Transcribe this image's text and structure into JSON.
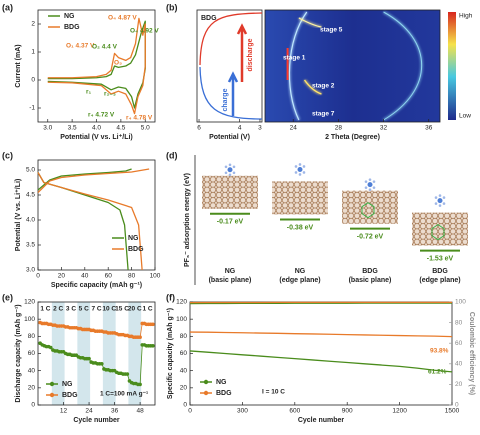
{
  "chart_data": [
    {
      "type": "line",
      "label": "(a)",
      "xlabel": "Potential (V vs. Li⁺/Li)",
      "ylabel": "Current (mA)",
      "xlim": [
        2.8,
        5.2
      ],
      "xticks": [
        {
          "value": 3.0,
          "label": "3.0"
        },
        {
          "value": 3.5,
          "label": "3.5"
        },
        {
          "value": 4.0,
          "label": "4.0"
        },
        {
          "value": 4.5,
          "label": "4.5"
        },
        {
          "value": 5.0,
          "label": "5.0"
        }
      ],
      "ylim": [
        -1.5,
        2.5
      ],
      "yticks": [
        -1,
        0,
        1,
        2
      ],
      "series": [
        {
          "name": "NG",
          "color": "#4a8c1c",
          "x": [
            3.0,
            3.5,
            4.0,
            4.2,
            4.3,
            4.37,
            4.45,
            4.6,
            4.7,
            4.8,
            4.92,
            5.0,
            5.0,
            4.95,
            4.85,
            4.78,
            4.72,
            4.6,
            4.45,
            4.3,
            4.1,
            3.5,
            3.0
          ],
          "values": [
            0.05,
            0.05,
            0.08,
            0.12,
            0.2,
            0.5,
            0.45,
            0.5,
            0.6,
            0.9,
            1.7,
            2.1,
            0.4,
            -0.1,
            -0.5,
            -1.0,
            -0.6,
            -0.3,
            -0.25,
            -0.35,
            -0.15,
            -0.08,
            -0.05
          ]
        },
        {
          "name": "BDG",
          "color": "#e87a2a",
          "x": [
            3.0,
            3.5,
            4.0,
            4.2,
            4.3,
            4.37,
            4.45,
            4.6,
            4.7,
            4.8,
            4.87,
            4.95,
            5.0,
            5.0,
            4.95,
            4.85,
            4.78,
            4.72,
            4.6,
            4.45,
            4.3,
            4.1,
            3.5,
            3.0
          ],
          "values": [
            0.08,
            0.08,
            0.12,
            0.2,
            0.35,
            0.95,
            0.8,
            0.7,
            0.8,
            1.3,
            2.2,
            1.6,
            2.0,
            0.5,
            -0.2,
            -0.6,
            -1.2,
            -0.9,
            -0.5,
            -0.4,
            -0.5,
            -0.2,
            -0.1,
            -0.08
          ]
        }
      ],
      "annotations": [
        "O₄ 4.87 V",
        "O₁ 4.37 V",
        "O₂ 4.4 V",
        "O₄ 4.92 V",
        "O₃",
        "r₁",
        "r₂₋₃",
        "r₄ 4.72 V",
        "r₄ 4.78 V"
      ]
    },
    {
      "type": "heatmap",
      "label": "(b)",
      "sample": "BDG",
      "discharge": "discharge",
      "charge": "charge",
      "vlabel": "Potential (V)",
      "vlim": [
        6.1,
        2.9
      ],
      "vticks": [
        6,
        4,
        3
      ],
      "xlabel": "2 Theta (Degree)",
      "xlim": [
        21.5,
        37
      ],
      "xticks": [
        24,
        28,
        32,
        36
      ],
      "annotations": [
        "stage 5",
        "stage 1",
        "stage 2",
        "stage 7"
      ],
      "high": "High",
      "low": "Low"
    },
    {
      "type": "line",
      "label": "(c)",
      "xlabel": "Specific capacity (mAh g⁻¹)",
      "ylabel": "Potential (V vs. Li⁺/Li)",
      "xlim": [
        0,
        100
      ],
      "xticks": [
        0,
        20,
        40,
        60,
        80,
        100
      ],
      "ylim": [
        3.0,
        5.2
      ],
      "yticks": [
        {
          "value": 3.0,
          "label": "3.0"
        },
        {
          "value": 3.5,
          "label": "3.5"
        },
        {
          "value": 4.0,
          "label": "4.0"
        },
        {
          "value": 4.5,
          "label": "4.5"
        },
        {
          "value": 5.0,
          "label": "5.0"
        }
      ],
      "series": [
        {
          "name": "NG",
          "color": "#4a8c1c",
          "x": [
            0,
            10,
            20,
            40,
            60,
            75,
            80,
            null,
            0,
            5,
            20,
            40,
            60,
            70,
            74,
            76,
            77
          ],
          "values": [
            4.6,
            4.8,
            4.88,
            4.92,
            4.95,
            4.98,
            5.02,
            null,
            4.95,
            4.75,
            4.65,
            4.5,
            4.35,
            4.2,
            3.9,
            3.3,
            3.0
          ]
        },
        {
          "name": "BDG",
          "color": "#e87a2a",
          "x": [
            0,
            10,
            20,
            40,
            60,
            80,
            95,
            null,
            0,
            5,
            20,
            40,
            60,
            80,
            86,
            88,
            89
          ],
          "values": [
            4.55,
            4.78,
            4.85,
            4.9,
            4.93,
            4.96,
            5.02,
            null,
            4.95,
            4.75,
            4.65,
            4.52,
            4.4,
            4.25,
            3.9,
            3.3,
            3.0
          ]
        }
      ]
    },
    {
      "type": "bar",
      "label": "(d)",
      "ylabel": "PF₆⁻ adsorption energy (eV)",
      "ylim": [
        -2.8,
        2.0
      ],
      "categories": [
        [
          "NG",
          "(basic plane)"
        ],
        [
          "NG",
          "(edge plane)"
        ],
        [
          "BDG",
          "(basic plane)"
        ],
        [
          "BDG",
          "(edge plane)"
        ]
      ],
      "values": [
        -0.17,
        -0.38,
        -0.72,
        -1.53
      ],
      "value_labels": [
        "-0.17 eV",
        "-0.38 eV",
        "-0.72 eV",
        "-1.53 eV"
      ],
      "color": "#4a8c1c"
    },
    {
      "type": "scatter",
      "label": "(e)",
      "xlabel": "Cycle number",
      "ylabel": "Discharge capacity (mAh g⁻¹)",
      "xlim": [
        0,
        55
      ],
      "xticks": [
        12,
        24,
        36,
        48
      ],
      "ylim": [
        0,
        120
      ],
      "yticks": [
        0,
        20,
        40,
        60,
        80,
        100,
        120
      ],
      "rates": [
        "1 C",
        "2 C",
        "3 C",
        "5 C",
        "7 C",
        "10 C",
        "15 C",
        "20 C",
        "1 C"
      ],
      "note": "1 C=100 mA g⁻¹",
      "x": [
        1,
        2,
        3,
        4,
        5,
        6,
        7,
        8,
        9,
        10,
        11,
        12,
        13,
        14,
        15,
        16,
        17,
        18,
        19,
        20,
        21,
        22,
        23,
        24,
        25,
        26,
        27,
        28,
        29,
        30,
        31,
        32,
        33,
        34,
        35,
        36,
        37,
        38,
        39,
        40,
        41,
        42,
        43,
        44,
        45,
        46,
        47,
        48,
        49,
        50,
        51,
        52,
        53,
        54
      ],
      "series": [
        {
          "name": "NG",
          "color": "#4a8c1c",
          "values": [
            72,
            70,
            69,
            68,
            68,
            67,
            64,
            63,
            63,
            62,
            62,
            62,
            60,
            59,
            59,
            58,
            58,
            58,
            56,
            55,
            55,
            54,
            54,
            54,
            50,
            49,
            49,
            48,
            48,
            48,
            42,
            41,
            41,
            40,
            40,
            40,
            38,
            37,
            37,
            36,
            36,
            36,
            28,
            26,
            25,
            25,
            24,
            24,
            70,
            70,
            69,
            69,
            69,
            69
          ]
        },
        {
          "name": "BDG",
          "color": "#e87a2a",
          "values": [
            96,
            95,
            95,
            95,
            94,
            94,
            93,
            93,
            92,
            92,
            92,
            92,
            91,
            91,
            90,
            90,
            90,
            90,
            89,
            89,
            88,
            88,
            88,
            88,
            87,
            87,
            86,
            86,
            86,
            86,
            85,
            85,
            84,
            84,
            84,
            84,
            83,
            82,
            82,
            82,
            81,
            81,
            80,
            80,
            79,
            79,
            79,
            79,
            95,
            95,
            94,
            94,
            94,
            94
          ]
        }
      ]
    },
    {
      "type": "line",
      "label": "(f)",
      "xlabel": "Cycle number",
      "ylabel": "Specific capacity (mAh g⁻¹)",
      "y2label": "Coulombic efficiency (%)",
      "xlim": [
        0,
        1500
      ],
      "xticks": [
        0,
        300,
        600,
        900,
        1200,
        1500
      ],
      "ylim": [
        0,
        120
      ],
      "yticks": [
        0,
        20,
        40,
        60,
        80,
        100,
        120
      ],
      "y2lim": [
        0,
        100
      ],
      "y2ticks": [
        0,
        20,
        40,
        60,
        80,
        100
      ],
      "x": [
        0,
        100,
        200,
        300,
        400,
        500,
        600,
        700,
        800,
        900,
        1000,
        1100,
        1200,
        1300,
        1400,
        1500
      ],
      "series": [
        {
          "name": "NG",
          "color": "#4a8c1c",
          "values": [
            63,
            61.5,
            60,
            58.5,
            57,
            55.5,
            54,
            52.5,
            51,
            49.5,
            48,
            46.5,
            45,
            43,
            40.5,
            38.6
          ],
          "efficiency": [
            98.5,
            98.6,
            98.6,
            98.7,
            98.7,
            98.7,
            98.8,
            98.8,
            98.8,
            98.8,
            98.9,
            98.9,
            98.9,
            98.9,
            98.9,
            98.9
          ]
        },
        {
          "name": "BDG",
          "color": "#e87a2a",
          "values": [
            85,
            84.8,
            84.5,
            84.2,
            83.8,
            83.5,
            83.1,
            82.8,
            82.4,
            82,
            81.6,
            81.3,
            80.9,
            80.5,
            80.2,
            79.7
          ],
          "efficiency": [
            99.4,
            99.5,
            99.5,
            99.5,
            99.5,
            99.6,
            99.6,
            99.6,
            99.6,
            99.6,
            99.6,
            99.6,
            99.6,
            99.6,
            99.6,
            99.6
          ]
        }
      ],
      "annotations": [
        "93.8%",
        "61.2%",
        "I = 10 C"
      ]
    }
  ]
}
